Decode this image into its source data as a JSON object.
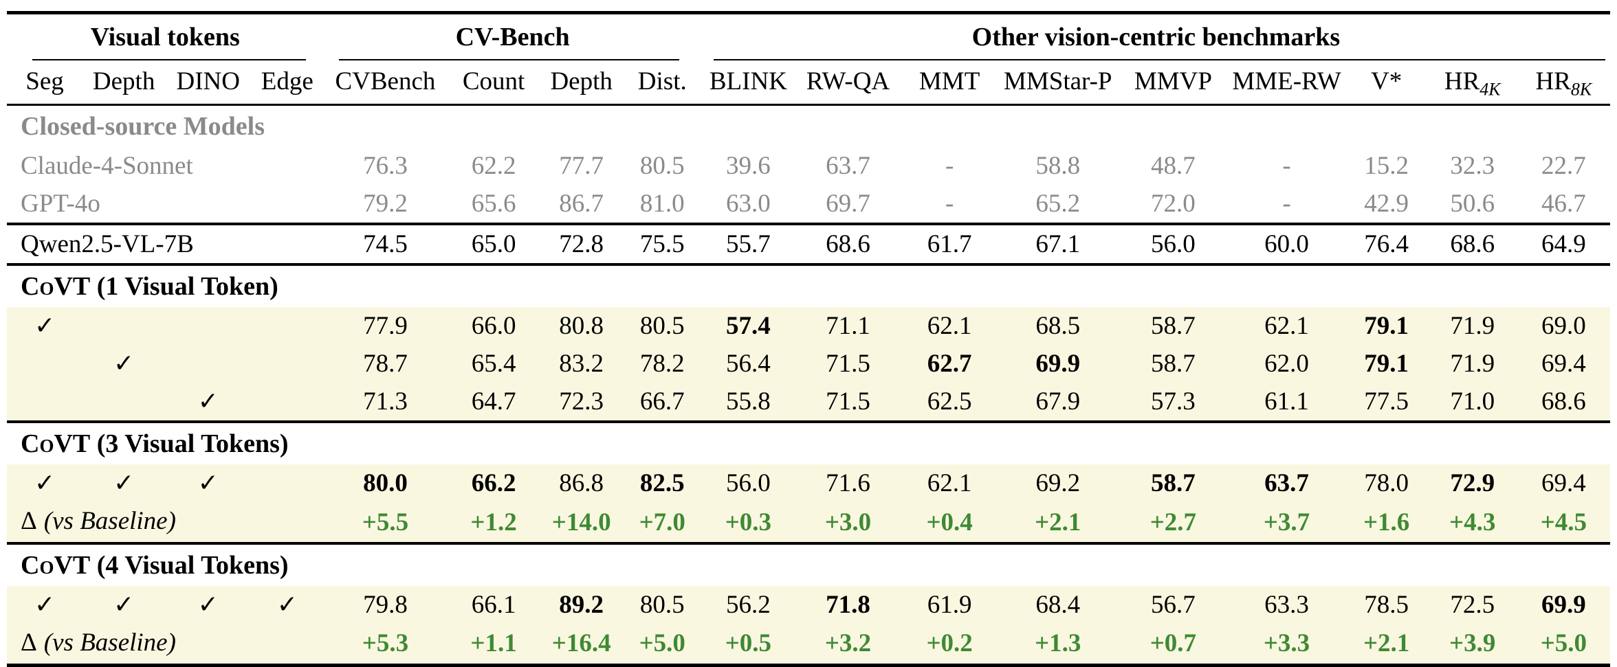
{
  "check_symbol": "✓",
  "colors": {
    "highlight_bg": "#faf7e1",
    "delta_green": "#3e8a33",
    "muted_gray": "#8a8a8a"
  },
  "header": {
    "groups": [
      {
        "label": "Visual tokens",
        "span": 4
      },
      {
        "label": "CV-Bench",
        "span": 4
      },
      {
        "label": "Other vision-centric benchmarks",
        "span": 9
      }
    ],
    "columns": [
      {
        "label": "Seg"
      },
      {
        "label": "Depth"
      },
      {
        "label": "DINO"
      },
      {
        "label": "Edge"
      },
      {
        "label": "CVBench"
      },
      {
        "label": "Count"
      },
      {
        "label": "Depth"
      },
      {
        "label": "Dist."
      },
      {
        "label": "BLINK"
      },
      {
        "label": "RW-QA"
      },
      {
        "label": "MMT"
      },
      {
        "label": "MMStar-P"
      },
      {
        "label": "MMVP"
      },
      {
        "label": "MME-RW"
      },
      {
        "label": "V*"
      },
      {
        "label": "HR",
        "sub": "4K"
      },
      {
        "label": "HR",
        "sub": "8K"
      }
    ]
  },
  "rows": [
    {
      "type": "section",
      "label": "Closed-source Models",
      "muted": true
    },
    {
      "type": "model",
      "label": "Claude-4-Sonnet",
      "muted": true,
      "values": [
        "76.3",
        "62.2",
        "77.7",
        "80.5",
        "39.6",
        "63.7",
        "-",
        "58.8",
        "48.7",
        "-",
        "15.2",
        "32.3",
        "22.7"
      ],
      "bold": []
    },
    {
      "type": "model",
      "label": "GPT-4o",
      "muted": true,
      "values": [
        "79.2",
        "65.6",
        "86.7",
        "81.0",
        "63.0",
        "69.7",
        "-",
        "65.2",
        "72.0",
        "-",
        "42.9",
        "50.6",
        "46.7"
      ],
      "bold": []
    },
    {
      "type": "model",
      "label": "Qwen2.5-VL-7B",
      "rule_above": true,
      "values": [
        "74.5",
        "65.0",
        "72.8",
        "75.5",
        "55.7",
        "68.6",
        "61.7",
        "67.1",
        "56.0",
        "60.0",
        "76.4",
        "68.6",
        "64.9"
      ],
      "bold": []
    },
    {
      "type": "covt_section",
      "name": "CoVT",
      "suffix": " (1 Visual Token)",
      "rule_above": true
    },
    {
      "type": "ablation",
      "checks": [
        1,
        0,
        0,
        0
      ],
      "highlight": true,
      "values": [
        "77.9",
        "66.0",
        "80.8",
        "80.5",
        "57.4",
        "71.1",
        "62.1",
        "68.5",
        "58.7",
        "62.1",
        "79.1",
        "71.9",
        "69.0"
      ],
      "bold": [
        4,
        10
      ]
    },
    {
      "type": "ablation",
      "checks": [
        0,
        1,
        0,
        0
      ],
      "highlight": true,
      "values": [
        "78.7",
        "65.4",
        "83.2",
        "78.2",
        "56.4",
        "71.5",
        "62.7",
        "69.9",
        "58.7",
        "62.0",
        "79.1",
        "71.9",
        "69.4"
      ],
      "bold": [
        6,
        7,
        10
      ]
    },
    {
      "type": "ablation",
      "checks": [
        0,
        0,
        1,
        0
      ],
      "highlight": true,
      "values": [
        "71.3",
        "64.7",
        "72.3",
        "66.7",
        "55.8",
        "71.5",
        "62.5",
        "67.9",
        "57.3",
        "61.1",
        "77.5",
        "71.0",
        "68.6"
      ],
      "bold": []
    },
    {
      "type": "covt_section",
      "name": "CoVT",
      "suffix": " (3 Visual Tokens)",
      "rule_above": true
    },
    {
      "type": "ablation",
      "checks": [
        1,
        1,
        1,
        0
      ],
      "highlight": true,
      "values": [
        "80.0",
        "66.2",
        "86.8",
        "82.5",
        "56.0",
        "71.6",
        "62.1",
        "69.2",
        "58.7",
        "63.7",
        "78.0",
        "72.9",
        "69.4"
      ],
      "bold": [
        0,
        1,
        3,
        8,
        9,
        11
      ]
    },
    {
      "type": "delta",
      "delta_symbol": "Δ",
      "label": "(vs Baseline)",
      "highlight": true,
      "values": [
        "+5.5",
        "+1.2",
        "+14.0",
        "+7.0",
        "+0.3",
        "+3.0",
        "+0.4",
        "+2.1",
        "+2.7",
        "+3.7",
        "+1.6",
        "+4.3",
        "+4.5"
      ],
      "bold": []
    },
    {
      "type": "covt_section",
      "name": "CoVT",
      "suffix": " (4 Visual Tokens)",
      "rule_above": true
    },
    {
      "type": "ablation",
      "checks": [
        1,
        1,
        1,
        1
      ],
      "highlight": true,
      "values": [
        "79.8",
        "66.1",
        "89.2",
        "80.5",
        "56.2",
        "71.8",
        "61.9",
        "68.4",
        "56.7",
        "63.3",
        "78.5",
        "72.5",
        "69.9"
      ],
      "bold": [
        2,
        5,
        12
      ]
    },
    {
      "type": "delta",
      "delta_symbol": "Δ",
      "label": "(vs Baseline)",
      "highlight": true,
      "values": [
        "+5.3",
        "+1.1",
        "+16.4",
        "+5.0",
        "+0.5",
        "+3.2",
        "+0.2",
        "+1.3",
        "+0.7",
        "+3.3",
        "+2.1",
        "+3.9",
        "+5.0"
      ],
      "bold": []
    }
  ]
}
